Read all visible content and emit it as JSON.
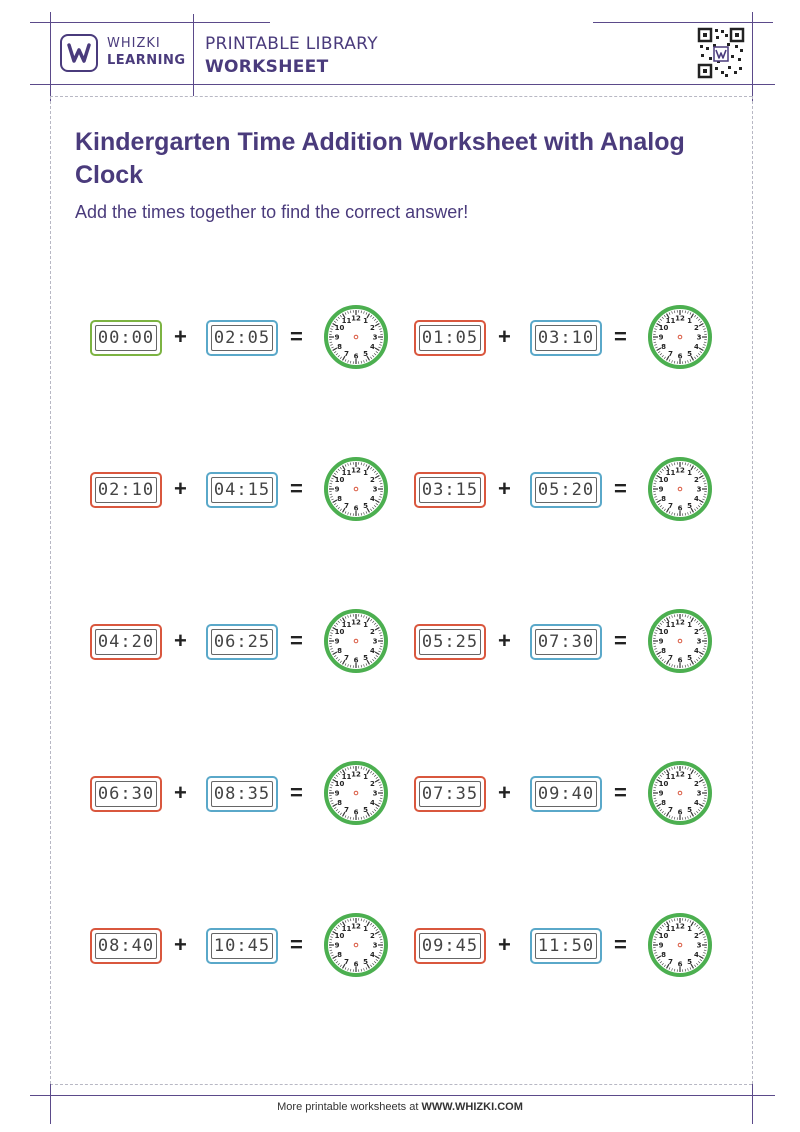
{
  "header": {
    "brand_top": "WHIZKI",
    "brand_bottom": "LEARNING",
    "library_label": "PRINTABLE LIBRARY",
    "worksheet_label": "WORKSHEET",
    "logo_icon": "whizki-w-logo",
    "qr_icon": "qr-code"
  },
  "title": "Kindergarten Time Addition Worksheet with Analog Clock",
  "subtitle": "Add the times together to find the correct answer!",
  "symbols": {
    "plus": "+",
    "equals": "="
  },
  "clock_numbers": [
    "12",
    "1",
    "2",
    "3",
    "4",
    "5",
    "6",
    "7",
    "8",
    "9",
    "10",
    "11"
  ],
  "problems": [
    {
      "a": "00:00",
      "b": "02:05"
    },
    {
      "a": "01:05",
      "b": "03:10"
    },
    {
      "a": "02:10",
      "b": "04:15"
    },
    {
      "a": "03:15",
      "b": "05:20"
    },
    {
      "a": "04:20",
      "b": "06:25"
    },
    {
      "a": "05:25",
      "b": "07:30"
    },
    {
      "a": "06:30",
      "b": "08:35"
    },
    {
      "a": "07:35",
      "b": "09:40"
    },
    {
      "a": "08:40",
      "b": "10:45"
    },
    {
      "a": "09:45",
      "b": "11:50"
    }
  ],
  "footer": {
    "prefix": "More printable worksheets at ",
    "url": "WWW.WHIZKI.COM"
  },
  "colors": {
    "brand": "#4a3b7c",
    "clock_red": "#d9573e",
    "clock_blue": "#5aa8c9",
    "clock_green_first": "#7cb342",
    "analog_ring": "#4caf50"
  }
}
